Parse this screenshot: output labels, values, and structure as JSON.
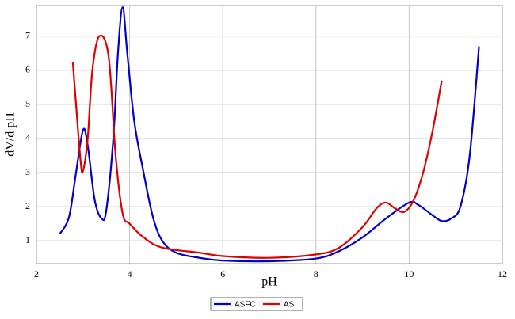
{
  "chart_data": {
    "type": "line",
    "x_label": "pH",
    "y_label": "dV/d pH",
    "xlim": [
      2,
      12
    ],
    "ylim": [
      0.33,
      7.9
    ],
    "xticks": [
      2,
      4,
      6,
      8,
      10,
      12
    ],
    "yticks": [
      1,
      2,
      3,
      4,
      5,
      6,
      7
    ],
    "grid": true,
    "legend": "bottom",
    "series": [
      {
        "name": "ASFC",
        "color": "#0000cc",
        "x": [
          2.5,
          2.7,
          2.85,
          3.0,
          3.1,
          3.25,
          3.4,
          3.5,
          3.65,
          3.75,
          3.85,
          3.95,
          4.1,
          4.3,
          4.5,
          4.7,
          5.0,
          5.5,
          6,
          7,
          8,
          8.5,
          9.0,
          9.5,
          10.0,
          10.2,
          10.5,
          10.7,
          10.9,
          11.1,
          11.3,
          11.5
        ],
        "values": [
          1.2,
          1.7,
          3.0,
          4.25,
          3.8,
          2.2,
          1.65,
          1.9,
          4.0,
          6.5,
          7.85,
          6.5,
          4.5,
          3.0,
          1.7,
          1.0,
          0.65,
          0.5,
          0.42,
          0.4,
          0.48,
          0.7,
          1.1,
          1.65,
          2.12,
          2.05,
          1.75,
          1.58,
          1.65,
          2.0,
          3.5,
          6.7
        ]
      },
      {
        "name": "AS",
        "color": "#dd0000",
        "x": [
          2.78,
          2.85,
          2.95,
          3.0,
          3.1,
          3.2,
          3.35,
          3.55,
          3.7,
          3.85,
          4.0,
          4.3,
          4.7,
          5.5,
          6,
          7,
          8,
          8.5,
          9.0,
          9.3,
          9.5,
          9.7,
          9.9,
          10.1,
          10.3,
          10.5,
          10.7
        ],
        "values": [
          6.25,
          5.0,
          3.3,
          3.05,
          4.0,
          6.0,
          7.0,
          6.4,
          3.5,
          1.8,
          1.5,
          1.1,
          0.8,
          0.65,
          0.55,
          0.5,
          0.6,
          0.8,
          1.4,
          1.95,
          2.12,
          1.95,
          1.85,
          2.2,
          3.0,
          4.2,
          5.7
        ]
      }
    ]
  }
}
